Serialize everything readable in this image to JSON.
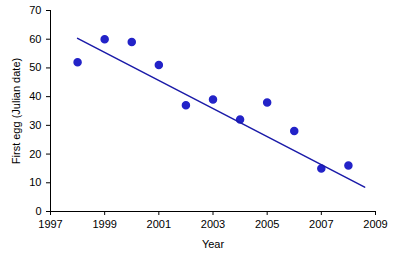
{
  "chart_data": {
    "type": "scatter",
    "x_label": "Year",
    "y_label": "First egg (Julian date)",
    "xlim": [
      1997,
      2009
    ],
    "xticks": [
      1997,
      1999,
      2001,
      2003,
      2005,
      2007,
      2009
    ],
    "ylim": [
      0,
      70
    ],
    "yticks": [
      0,
      10,
      20,
      30,
      40,
      50,
      60,
      70
    ],
    "grid": false,
    "series": [
      {
        "type": "scatter",
        "color": "#2323c8",
        "marker": "circle",
        "x": [
          1998,
          1999,
          2000,
          2001,
          2002,
          2003,
          2004,
          2005,
          2006,
          2007,
          2008
        ],
        "values": [
          52,
          60,
          59,
          51,
          37,
          39,
          32,
          38,
          28,
          15,
          16
        ]
      },
      {
        "type": "line",
        "color": "#1a1aa8",
        "line_style": "solid",
        "x": [
          1998,
          2008.6
        ],
        "values": [
          60.3,
          8.5
        ]
      }
    ]
  }
}
